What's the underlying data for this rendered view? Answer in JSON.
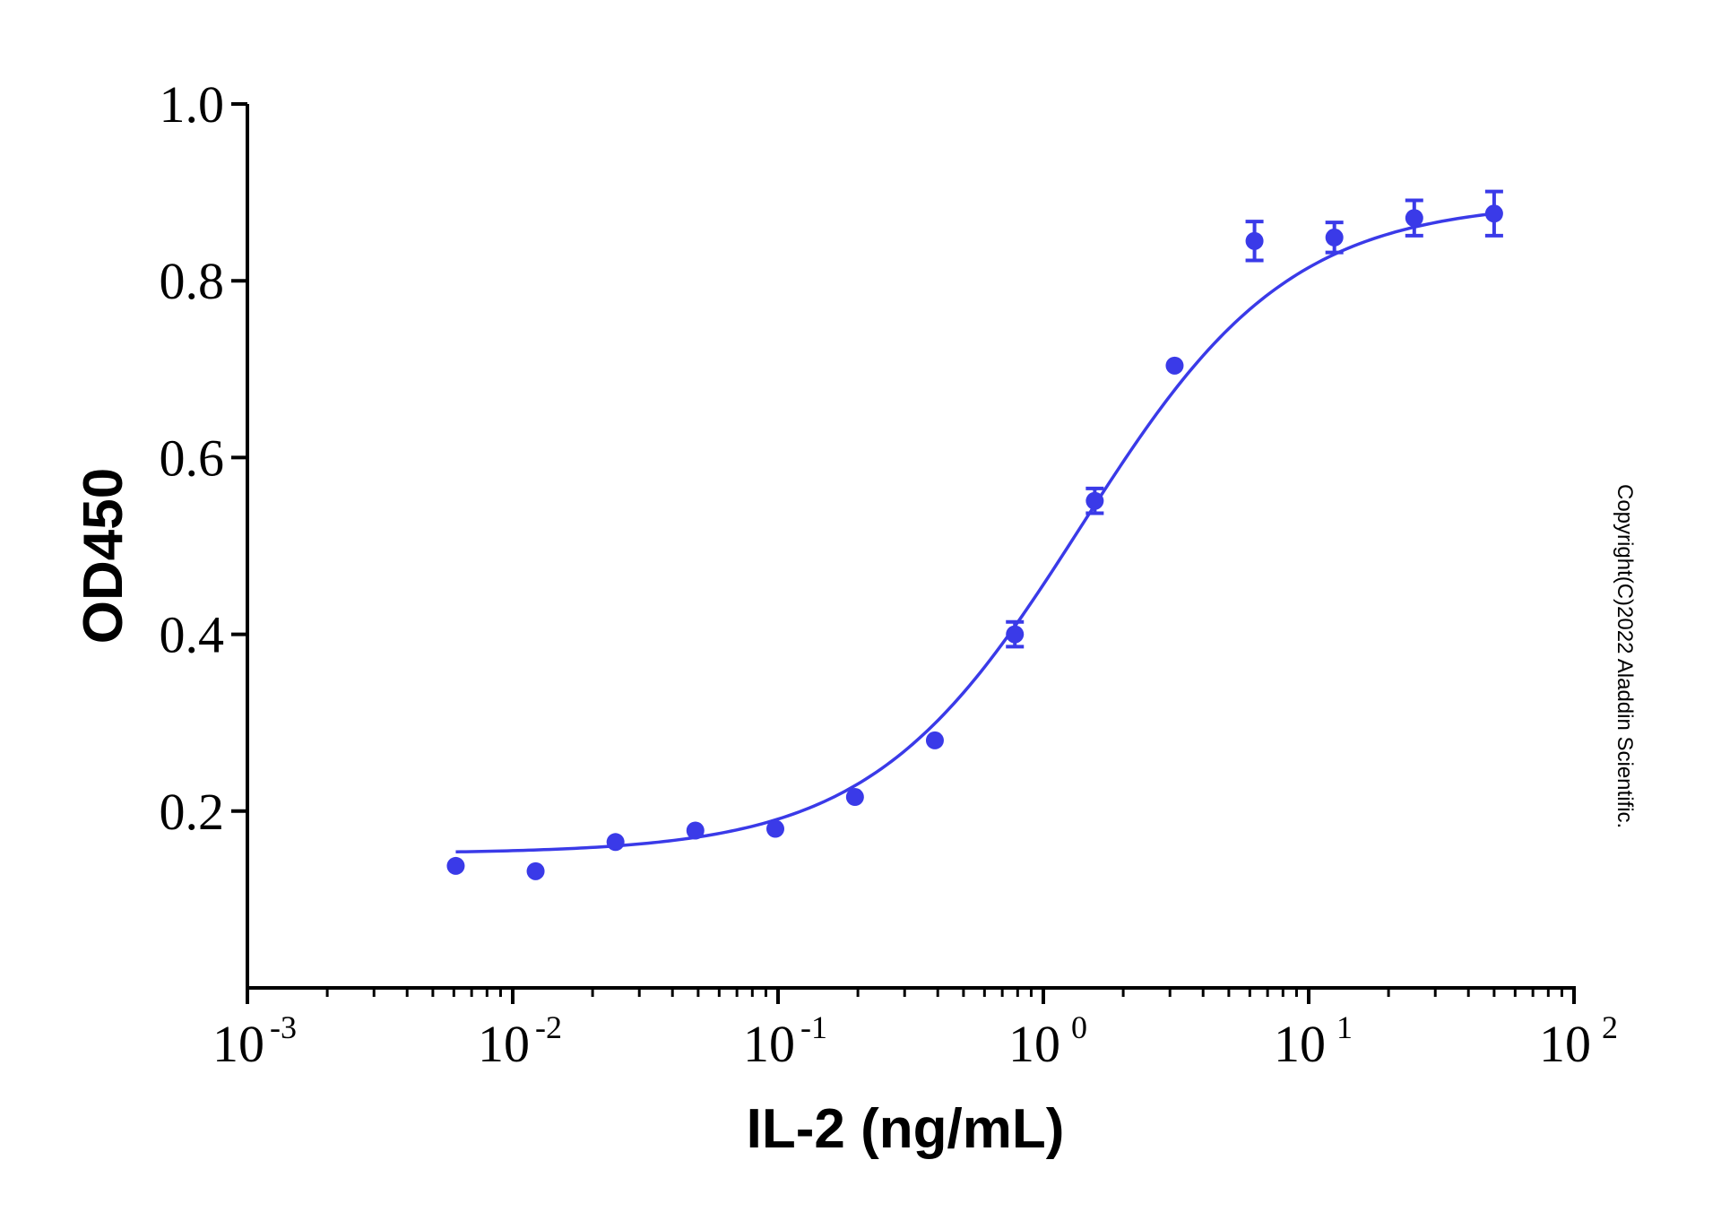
{
  "chart_data": {
    "type": "scatter",
    "title": "",
    "xlabel": "IL-2 (ng/mL)",
    "ylabel": "OD450",
    "xscale": "log",
    "xlim": [
      0.001,
      100
    ],
    "ylim": [
      0.0,
      1.0
    ],
    "x_tick_labels": [
      {
        "base": "10",
        "exp": "-3"
      },
      {
        "base": "10",
        "exp": "-2"
      },
      {
        "base": "10",
        "exp": "-1"
      },
      {
        "base": "10",
        "exp": "0"
      },
      {
        "base": "10",
        "exp": "1"
      },
      {
        "base": "10",
        "exp": "2"
      }
    ],
    "y_ticks": [
      "0.2",
      "0.4",
      "0.6",
      "0.8",
      "1.0"
    ],
    "grid": false,
    "series": [
      {
        "color": "#3a3ae8",
        "points": [
          {
            "x": 0.0061,
            "y": 0.138,
            "err": 0
          },
          {
            "x": 0.0122,
            "y": 0.132,
            "err": 0
          },
          {
            "x": 0.0244,
            "y": 0.165,
            "err": 0
          },
          {
            "x": 0.0488,
            "y": 0.178,
            "err": 0
          },
          {
            "x": 0.0977,
            "y": 0.18,
            "err": 0
          },
          {
            "x": 0.195,
            "y": 0.216,
            "err": 0
          },
          {
            "x": 0.39,
            "y": 0.28,
            "err": 0
          },
          {
            "x": 0.781,
            "y": 0.4,
            "err": 0.014
          },
          {
            "x": 1.5625,
            "y": 0.551,
            "err": 0.014
          },
          {
            "x": 3.125,
            "y": 0.704,
            "err": 0
          },
          {
            "x": 6.25,
            "y": 0.845,
            "err": 0.022
          },
          {
            "x": 12.5,
            "y": 0.849,
            "err": 0.017
          },
          {
            "x": 25,
            "y": 0.871,
            "err": 0.02
          },
          {
            "x": 50,
            "y": 0.876,
            "err": 0.025
          }
        ],
        "fit": {
          "model": "4PL",
          "bottom": 0.152,
          "top": 0.89,
          "ec50": 1.38,
          "hill": 1.1,
          "x_range": [
            0.0061,
            50
          ]
        }
      }
    ]
  },
  "copyright": "Copyright(C)2022 Aladdin Scientific."
}
